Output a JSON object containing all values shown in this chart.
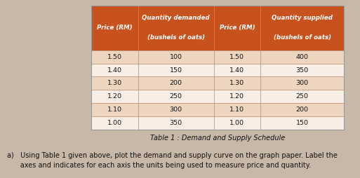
{
  "demand_price": [
    1.5,
    1.4,
    1.3,
    1.2,
    1.1,
    1.0
  ],
  "demand_qty": [
    100,
    150,
    200,
    250,
    300,
    350
  ],
  "supply_price": [
    1.5,
    1.4,
    1.3,
    1.2,
    1.1,
    1.0
  ],
  "supply_qty": [
    400,
    350,
    300,
    250,
    200,
    150
  ],
  "header_bg": "#C8521E",
  "row_bg_odd": "#EDD5C0",
  "row_bg_even": "#F8EEE6",
  "header_text_color": "#FFFFFF",
  "cell_text_color": "#111111",
  "table_caption": "Table 1 : Demand and Supply Schedule",
  "instruction_line1": "a)   Using Table 1 given above, plot the demand and supply curve on the graph paper. Label the",
  "instruction_line2": "      axes and indicates for each axis the units being used to measure price and quantity.",
  "col_headers_line1": [
    "Price (RM)",
    "Quantity demanded",
    "Price (RM)",
    "Quantity supplied"
  ],
  "col_headers_line2": [
    "",
    "(bushels of oats)",
    "",
    "(bushels of oats)"
  ],
  "fig_bg": "#C8B8A8",
  "table_border_color": "#999999",
  "row_line_color": "#BB8866"
}
